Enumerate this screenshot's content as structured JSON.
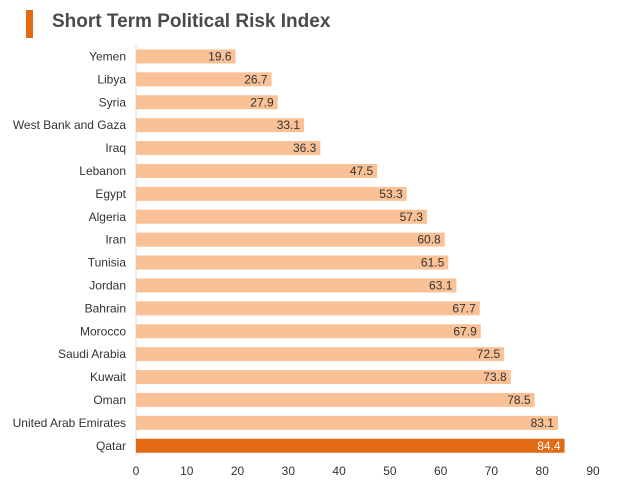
{
  "chart_data": {
    "type": "bar",
    "orientation": "horizontal",
    "title": "Short Term Political Risk Index",
    "xlabel": "",
    "ylabel": "",
    "xlim": [
      0,
      90
    ],
    "xticks": [
      "0",
      "10",
      "20",
      "30",
      "40",
      "50",
      "60",
      "70",
      "80",
      "90"
    ],
    "grid": false,
    "legend": "none",
    "categories": [
      "Yemen",
      "Libya",
      "Syria",
      "West Bank and Gaza",
      "Iraq",
      "Lebanon",
      "Egypt",
      "Algeria",
      "Iran",
      "Tunisia",
      "Jordan",
      "Bahrain",
      "Morocco",
      "Saudi Arabia",
      "Kuwait",
      "Oman",
      "United Arab Emirates",
      "Qatar"
    ],
    "values": [
      19.6,
      26.7,
      27.9,
      33.1,
      36.3,
      47.5,
      53.3,
      57.3,
      60.8,
      61.5,
      63.1,
      67.7,
      67.9,
      72.5,
      73.8,
      78.5,
      83.1,
      84.4
    ],
    "labels": [
      "19.6",
      "26.7",
      "27.9",
      "33.1",
      "36.3",
      "47.5",
      "53.3",
      "57.3",
      "60.8",
      "61.5",
      "63.1",
      "67.7",
      "67.9",
      "72.5",
      "73.8",
      "78.5",
      "83.1",
      "84.4"
    ],
    "highlight": "Qatar",
    "colors": {
      "bar": "#f9c195",
      "highlight": "#e26a12",
      "title_accent": "#e26a12",
      "text": "#333333",
      "highlight_label": "#ffffff"
    }
  }
}
